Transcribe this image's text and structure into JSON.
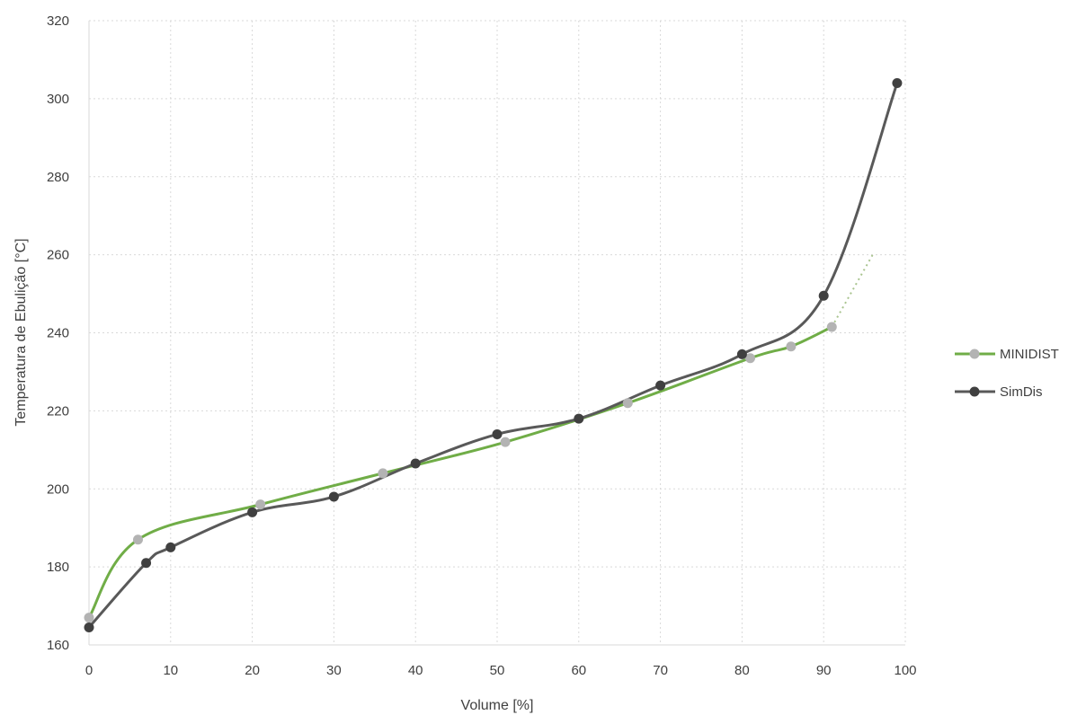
{
  "chart_data": {
    "type": "line",
    "xlabel": "Volume [%]",
    "ylabel": "Temperatura de Ebulição [°C]",
    "xlim": [
      0,
      100
    ],
    "ylim": [
      160,
      320
    ],
    "xticks": [
      0,
      10,
      20,
      30,
      40,
      50,
      60,
      70,
      80,
      90,
      100
    ],
    "yticks": [
      160,
      180,
      200,
      220,
      240,
      260,
      280,
      300,
      320
    ],
    "grid": true,
    "legend_position": "right",
    "series": [
      {
        "name": "MINIDIST",
        "line_color": "#70ad47",
        "marker_color": "#b3b3b3",
        "x": [
          0,
          6,
          21,
          36,
          51,
          66,
          81,
          86,
          91
        ],
        "y": [
          167,
          187,
          196,
          204,
          212,
          222,
          233.5,
          236.5,
          241.5
        ]
      },
      {
        "name": "SimDis",
        "line_color": "#595959",
        "marker_color": "#404040",
        "x": [
          0,
          7,
          10,
          20,
          30,
          40,
          50,
          60,
          70,
          80,
          90,
          99
        ],
        "y": [
          164.5,
          181,
          185,
          194,
          198,
          206.5,
          214,
          218,
          226.5,
          234.5,
          249.5,
          304
        ]
      }
    ],
    "trendline": {
      "series": "MINIDIST",
      "style": "dotted",
      "color": "#a9c48f",
      "x": [
        91,
        96
      ],
      "y": [
        241.5,
        260
      ]
    }
  }
}
